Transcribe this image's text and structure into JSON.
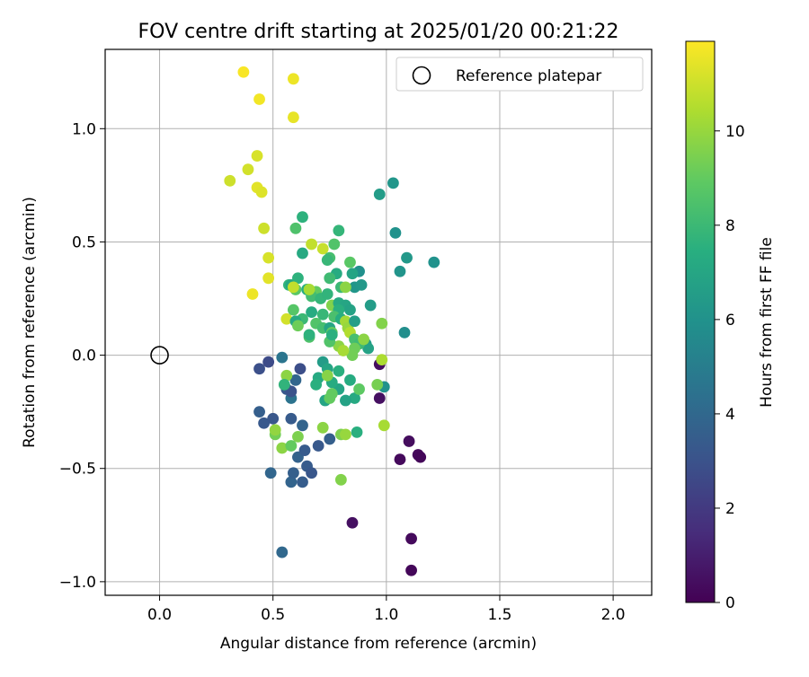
{
  "chart_data": {
    "type": "scatter",
    "title": "FOV centre drift starting at 2025/01/20 00:21:22",
    "xlabel": "Angular distance from reference (arcmin)",
    "ylabel": "Rotation from reference (arcmin)",
    "xlim": [
      -0.24,
      2.17
    ],
    "ylim": [
      -1.06,
      1.35
    ],
    "xticks": [
      0.0,
      0.5,
      1.0,
      1.5,
      2.0
    ],
    "xtick_labels": [
      "0.0",
      "0.5",
      "1.0",
      "1.5",
      "2.0"
    ],
    "yticks": [
      -1.0,
      -0.5,
      0.0,
      0.5,
      1.0
    ],
    "ytick_labels": [
      "−1.0",
      "−0.5",
      "0.0",
      "0.5",
      "1.0"
    ],
    "grid": true,
    "legend": {
      "position": "top-right",
      "entries": [
        "Reference platepar"
      ]
    },
    "reference_point": {
      "x": 0.0,
      "y": 0.0
    },
    "colorbar": {
      "label": "Hours from first FF file",
      "colormap": "viridis",
      "range": [
        0,
        11.9
      ],
      "ticks": [
        0,
        2,
        4,
        6,
        8,
        10
      ],
      "tick_labels": [
        "0",
        "2",
        "4",
        "6",
        "8",
        "10"
      ]
    },
    "points": [
      [
        1.11,
        -0.95,
        0.2
      ],
      [
        1.11,
        -0.81,
        0.3
      ],
      [
        0.85,
        -0.74,
        0.5
      ],
      [
        1.1,
        -0.38,
        0.4
      ],
      [
        1.14,
        -0.44,
        0.3
      ],
      [
        1.15,
        -0.45,
        0.2
      ],
      [
        1.06,
        -0.46,
        0.3
      ],
      [
        0.97,
        -0.19,
        0.5
      ],
      [
        0.97,
        -0.04,
        0.4
      ],
      [
        0.54,
        -0.87,
        4.0
      ],
      [
        0.58,
        -0.56,
        3.8
      ],
      [
        0.63,
        -0.56,
        3.5
      ],
      [
        0.65,
        -0.49,
        3.4
      ],
      [
        0.67,
        -0.52,
        3.2
      ],
      [
        0.59,
        -0.52,
        3.6
      ],
      [
        0.61,
        -0.45,
        3.7
      ],
      [
        0.64,
        -0.42,
        3.4
      ],
      [
        0.7,
        -0.4,
        3.3
      ],
      [
        0.49,
        -0.52,
        3.9
      ],
      [
        0.75,
        -0.37,
        3.6
      ],
      [
        0.46,
        -0.3,
        3.3
      ],
      [
        0.5,
        -0.28,
        3.2
      ],
      [
        0.44,
        -0.25,
        3.6
      ],
      [
        0.58,
        -0.28,
        3.4
      ],
      [
        0.63,
        -0.31,
        3.8
      ],
      [
        0.56,
        -0.15,
        3.3
      ],
      [
        0.58,
        -0.19,
        4.5
      ],
      [
        0.62,
        -0.06,
        2.8
      ],
      [
        0.48,
        -0.03,
        2.7
      ],
      [
        0.44,
        -0.06,
        2.9
      ],
      [
        0.54,
        -0.01,
        4.6
      ],
      [
        0.6,
        -0.11,
        3.9
      ],
      [
        0.58,
        -0.16,
        3.0
      ],
      [
        0.37,
        1.25,
        11.8
      ],
      [
        0.44,
        1.13,
        11.7
      ],
      [
        0.59,
        1.22,
        11.6
      ],
      [
        0.59,
        1.05,
        11.5
      ],
      [
        0.31,
        0.77,
        11.0
      ],
      [
        0.39,
        0.82,
        11.1
      ],
      [
        0.43,
        0.88,
        11.2
      ],
      [
        0.43,
        0.74,
        11.4
      ],
      [
        0.45,
        0.72,
        11.3
      ],
      [
        0.46,
        0.56,
        11.0
      ],
      [
        0.48,
        0.43,
        11.2
      ],
      [
        0.48,
        0.34,
        11.4
      ],
      [
        0.41,
        0.27,
        11.6
      ],
      [
        0.56,
        0.16,
        11.1
      ],
      [
        0.59,
        0.3,
        11.5
      ],
      [
        0.72,
        0.47,
        10.9
      ],
      [
        0.67,
        0.49,
        10.8
      ],
      [
        1.03,
        0.76,
        6.2
      ],
      [
        0.97,
        0.71,
        6.5
      ],
      [
        1.04,
        0.54,
        6.0
      ],
      [
        1.09,
        0.43,
        6.3
      ],
      [
        1.06,
        0.37,
        6.1
      ],
      [
        1.21,
        0.41,
        6.0
      ],
      [
        1.08,
        0.1,
        5.8
      ],
      [
        0.88,
        0.37,
        5.9
      ],
      [
        0.86,
        0.3,
        6.2
      ],
      [
        0.89,
        0.31,
        6.3
      ],
      [
        0.93,
        0.22,
        6.5
      ],
      [
        0.91,
        0.05,
        6.4
      ],
      [
        0.92,
        0.03,
        6.8
      ],
      [
        0.99,
        -0.14,
        6.0
      ],
      [
        0.87,
        -0.34,
        7.5
      ],
      [
        0.86,
        -0.19,
        7.2
      ],
      [
        0.82,
        -0.2,
        6.8
      ],
      [
        0.79,
        -0.15,
        6.9
      ],
      [
        0.76,
        -0.12,
        7.3
      ],
      [
        0.73,
        -0.2,
        6.9
      ],
      [
        0.7,
        -0.1,
        7.2
      ],
      [
        0.72,
        -0.03,
        6.5
      ],
      [
        0.74,
        -0.06,
        7.0
      ],
      [
        0.69,
        -0.13,
        7.5
      ],
      [
        0.75,
        -0.19,
        9.0
      ],
      [
        0.8,
        -0.35,
        9.5
      ],
      [
        0.82,
        -0.35,
        10.0
      ],
      [
        0.72,
        -0.32,
        9.8
      ],
      [
        0.99,
        -0.31,
        10.3
      ],
      [
        0.8,
        -0.55,
        9.6
      ],
      [
        0.54,
        -0.41,
        9.8
      ],
      [
        0.58,
        -0.4,
        9.0
      ],
      [
        0.61,
        -0.36,
        9.5
      ],
      [
        0.51,
        -0.35,
        9.3
      ],
      [
        0.51,
        -0.33,
        9.9
      ],
      [
        0.56,
        -0.09,
        9.8
      ],
      [
        0.63,
        0.61,
        7.6
      ],
      [
        0.6,
        0.56,
        8.5
      ],
      [
        0.79,
        0.55,
        7.8
      ],
      [
        0.77,
        0.49,
        8.6
      ],
      [
        0.63,
        0.45,
        7.2
      ],
      [
        0.75,
        0.43,
        8.3
      ],
      [
        0.74,
        0.42,
        7.9
      ],
      [
        0.84,
        0.41,
        8.8
      ],
      [
        0.85,
        0.36,
        6.9
      ],
      [
        0.78,
        0.36,
        7.3
      ],
      [
        0.75,
        0.34,
        8.1
      ],
      [
        0.8,
        0.3,
        8.0
      ],
      [
        0.82,
        0.3,
        9.8
      ],
      [
        0.57,
        0.31,
        7.7
      ],
      [
        0.58,
        0.31,
        7.1
      ],
      [
        0.61,
        0.34,
        7.6
      ],
      [
        0.6,
        0.29,
        8.8
      ],
      [
        0.65,
        0.29,
        7.4
      ],
      [
        0.69,
        0.28,
        9.0
      ],
      [
        0.67,
        0.26,
        8.2
      ],
      [
        0.71,
        0.25,
        7.8
      ],
      [
        0.74,
        0.27,
        7.7
      ],
      [
        0.76,
        0.22,
        9.6
      ],
      [
        0.79,
        0.23,
        7.2
      ],
      [
        0.82,
        0.22,
        7.0
      ],
      [
        0.84,
        0.2,
        6.8
      ],
      [
        0.79,
        0.2,
        7.5
      ],
      [
        0.77,
        0.17,
        8.4
      ],
      [
        0.67,
        0.19,
        7.3
      ],
      [
        0.63,
        0.16,
        8.0
      ],
      [
        0.59,
        0.2,
        8.7
      ],
      [
        0.6,
        0.15,
        7.2
      ],
      [
        0.61,
        0.13,
        9.2
      ],
      [
        0.69,
        0.14,
        8.6
      ],
      [
        0.72,
        0.18,
        7.9
      ],
      [
        0.72,
        0.12,
        8.3
      ],
      [
        0.75,
        0.12,
        7.0
      ],
      [
        0.76,
        0.1,
        9.0
      ],
      [
        0.8,
        0.16,
        7.4
      ],
      [
        0.82,
        0.15,
        10.2
      ],
      [
        0.83,
        0.12,
        10.0
      ],
      [
        0.86,
        0.15,
        6.6
      ],
      [
        0.84,
        0.1,
        10.5
      ],
      [
        0.86,
        0.07,
        8.3
      ],
      [
        0.88,
        0.05,
        8.1
      ],
      [
        0.86,
        0.03,
        9.2
      ],
      [
        0.85,
        0.0,
        9.3
      ],
      [
        0.79,
        0.04,
        9.8
      ],
      [
        0.81,
        0.02,
        10.3
      ],
      [
        0.75,
        0.06,
        8.6
      ],
      [
        0.76,
        0.09,
        7.5
      ],
      [
        0.66,
        0.08,
        8.5
      ],
      [
        0.66,
        0.09,
        7.6
      ],
      [
        0.98,
        0.14,
        9.6
      ],
      [
        0.9,
        0.07,
        9.8
      ],
      [
        0.98,
        -0.02,
        10.4
      ],
      [
        0.96,
        -0.13,
        9.4
      ],
      [
        0.88,
        -0.15,
        8.9
      ],
      [
        0.84,
        -0.11,
        7.3
      ],
      [
        0.79,
        -0.07,
        7.5
      ],
      [
        0.76,
        -0.17,
        9.0
      ],
      [
        0.74,
        -0.09,
        9.7
      ],
      [
        0.66,
        0.29,
        10.3
      ],
      [
        0.59,
        0.3,
        10.8
      ],
      [
        0.55,
        -0.13,
        7.7
      ]
    ]
  }
}
